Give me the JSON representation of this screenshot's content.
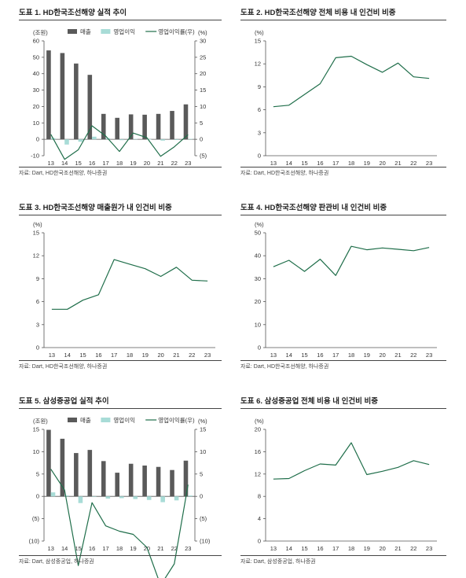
{
  "charts": [
    {
      "title": "도표 1. HD한국조선해양 실적 추이",
      "source": "자료: Dart, HD한국조선해양, 하나증권",
      "chart_data": {
        "type": "bar",
        "categories": [
          "13",
          "14",
          "15",
          "16",
          "17",
          "18",
          "19",
          "20",
          "21",
          "22",
          "23"
        ],
        "left_unit": "(조원)",
        "right_unit": "(%)",
        "ylim_left": [
          -10,
          60
        ],
        "yticks_left": [
          "60",
          "50",
          "40",
          "30",
          "20",
          "10",
          "0",
          "-10"
        ],
        "ylim_right": [
          -5,
          30
        ],
        "yticks_right": [
          "30",
          "25",
          "20",
          "15",
          "10",
          "5",
          "0",
          "(5)"
        ],
        "series": [
          {
            "name": "매출",
            "kind": "bar",
            "axis": "left",
            "color": "#5a5a5a",
            "values": [
              54.2,
              52.6,
              46.2,
              39.3,
              15.5,
              13.1,
              15.2,
              15.0,
              15.5,
              17.3,
              21.3
            ]
          },
          {
            "name": "영업이익",
            "kind": "bar",
            "axis": "left",
            "color": "#a8dcd7",
            "values": [
              0.8,
              -3.2,
              -1.5,
              1.6,
              0.7,
              -0.5,
              0.3,
              0.1,
              -0.8,
              -0.4,
              0.3
            ]
          },
          {
            "name": "영업이익률(우)",
            "kind": "line",
            "axis": "right",
            "color": "#1f6e4a",
            "values": [
              1.5,
              -6.1,
              -3.2,
              4.1,
              1.0,
              -3.7,
              1.9,
              0.5,
              -5.2,
              -2.3,
              1.4
            ]
          }
        ]
      }
    },
    {
      "title": "도표 2. HD한국조선해양 전체 비용 내 인건비 비중",
      "source": "자료: Dart, HD한국조선해양, 하나증권",
      "chart_data": {
        "type": "line",
        "categories": [
          "13",
          "14",
          "15",
          "16",
          "17",
          "18",
          "19",
          "20",
          "21",
          "22",
          "23"
        ],
        "left_unit": "(%)",
        "ylim_left": [
          0,
          15
        ],
        "yticks_left": [
          "15",
          "12",
          "9",
          "6",
          "3",
          "0"
        ],
        "series": [
          {
            "kind": "line",
            "color": "#1f6e4a",
            "values": [
              6.4,
              6.6,
              8.0,
              9.4,
              12.8,
              13.0,
              11.9,
              10.9,
              12.1,
              10.3,
              10.1
            ]
          }
        ]
      }
    },
    {
      "title": "도표 3. HD한국조선해양 매출원가 내 인건비 비중",
      "source": "자료: Dart, HD한국조선해양, 하나증권",
      "chart_data": {
        "type": "line",
        "categories": [
          "13",
          "14",
          "15",
          "16",
          "17",
          "18",
          "19",
          "20",
          "21",
          "22",
          "23"
        ],
        "left_unit": "(%)",
        "ylim_left": [
          0,
          15
        ],
        "yticks_left": [
          "15",
          "12",
          "9",
          "6",
          "3",
          "0"
        ],
        "series": [
          {
            "kind": "line",
            "color": "#1f6e4a",
            "values": [
              5.0,
              5.0,
              6.2,
              6.9,
              11.5,
              10.9,
              10.3,
              9.3,
              10.5,
              8.8,
              8.7
            ]
          }
        ]
      }
    },
    {
      "title": "도표 4. HD한국조선해양 판관비 내 인건비 비중",
      "source": "자료: Dart, HD한국조선해양, 하나증권",
      "chart_data": {
        "type": "line",
        "categories": [
          "13",
          "14",
          "15",
          "16",
          "17",
          "18",
          "19",
          "20",
          "21",
          "22",
          "23"
        ],
        "left_unit": "(%)",
        "ylim_left": [
          0,
          50
        ],
        "yticks_left": [
          "50",
          "40",
          "30",
          "20",
          "10",
          "0"
        ],
        "series": [
          {
            "kind": "line",
            "color": "#1f6e4a",
            "values": [
              35.2,
              38.0,
              33.2,
              38.5,
              31.4,
              44.1,
              42.6,
              43.4,
              42.8,
              42.2,
              43.6
            ]
          }
        ]
      }
    },
    {
      "title": "도표 5. 삼성중공업 실적 추이",
      "source": "자료: Dart, 삼성중공업, 하나증권",
      "chart_data": {
        "type": "bar",
        "categories": [
          "13",
          "14",
          "15",
          "16",
          "17",
          "18",
          "19",
          "20",
          "21",
          "22",
          "23"
        ],
        "left_unit": "(조원)",
        "right_unit": "(%)",
        "ylim_left": [
          -10,
          15
        ],
        "yticks_left": [
          "15",
          "10",
          "5",
          "0",
          "(5)",
          "(10)"
        ],
        "ylim_right": [
          -10,
          15
        ],
        "yticks_right": [
          "15",
          "10",
          "5",
          "0",
          "(5)",
          "(10)"
        ],
        "series": [
          {
            "name": "매출",
            "kind": "bar",
            "axis": "left",
            "color": "#5a5a5a",
            "values": [
              14.9,
              12.9,
              9.7,
              10.4,
              7.9,
              5.3,
              7.3,
              6.9,
              6.6,
              5.9,
              8.0
            ]
          },
          {
            "name": "영업이익",
            "kind": "bar",
            "axis": "left",
            "color": "#a8dcd7",
            "values": [
              0.9,
              0.2,
              -1.5,
              -0.1,
              -0.5,
              -0.4,
              -0.6,
              -0.8,
              -1.3,
              -0.9,
              0.2
            ]
          },
          {
            "name": "영업이익률(우)",
            "kind": "line",
            "axis": "right",
            "color": "#1f6e4a",
            "values": [
              6.1,
              1.4,
              -15.5,
              -1.4,
              -6.6,
              -7.8,
              -8.5,
              -11.4,
              -19.9,
              -15.1,
              2.6
            ]
          }
        ]
      }
    },
    {
      "title": "도표 6. 삼성중공업 전체 비용 내 인건비 비중",
      "source": "자료: Dart, 삼성중공업, 하나증권",
      "chart_data": {
        "type": "line",
        "categories": [
          "13",
          "14",
          "15",
          "16",
          "17",
          "18",
          "19",
          "20",
          "21",
          "22",
          "23"
        ],
        "left_unit": "(%)",
        "ylim_left": [
          0,
          20
        ],
        "yticks_left": [
          "20",
          "16",
          "12",
          "8",
          "4",
          "0"
        ],
        "series": [
          {
            "kind": "line",
            "color": "#1f6e4a",
            "values": [
              11.1,
              11.2,
              12.6,
              13.8,
              13.6,
              17.6,
              11.9,
              12.5,
              13.2,
              14.4,
              13.7
            ]
          }
        ]
      }
    }
  ]
}
